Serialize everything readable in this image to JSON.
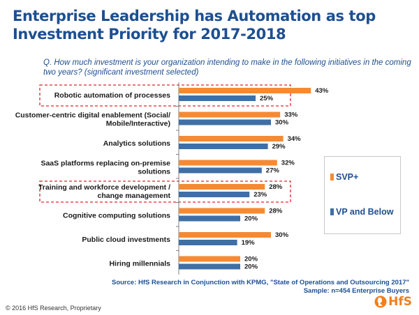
{
  "title": "Enterprise Leadership has Automation as top Investment Priority for 2017-2018",
  "question": "Q. How much investment is your organization intending to make in the following initiatives in the coming two years? (significant investment selected)",
  "legend": {
    "series_a": "SVP+",
    "series_b": "VP and Below"
  },
  "source": {
    "line1": "Source: HfS Research in Conjunction with KPMG, \"State of Operations and Outsourcing 2017\"",
    "line2": "Sample: n=454 Enterprise Buyers"
  },
  "footer": {
    "copyright": "© 2016 HfS Research, Proprietary",
    "logo_text": "HfS"
  },
  "colors": {
    "series_a": "#f58a33",
    "series_b": "#3f6fa5",
    "highlight": "#e0242a",
    "text": "#1a1a1a",
    "axis": "#7f7f7f"
  },
  "chart_data": {
    "type": "bar",
    "orientation": "horizontal",
    "categories": [
      [
        "Robotic automation of processes"
      ],
      [
        "Customer-centric digital enablement (Social/",
        "Mobile/Interactive)"
      ],
      [
        "Analytics solutions"
      ],
      [
        "SaaS platforms replacing on-premise",
        "solutions"
      ],
      [
        "Training and workforce development /",
        "change management"
      ],
      [
        "Cognitive computing solutions"
      ],
      [
        "Public cloud investments"
      ],
      [
        "Hiring millennials"
      ]
    ],
    "series": [
      {
        "name": "SVP+",
        "values": [
          43,
          33,
          34,
          32,
          28,
          28,
          30,
          20
        ]
      },
      {
        "name": "VP and Below",
        "values": [
          25,
          30,
          29,
          27,
          23,
          20,
          19,
          20
        ]
      }
    ],
    "value_suffix": "%",
    "xlim": [
      0,
      50
    ],
    "highlighted_categories": [
      0,
      4
    ],
    "grid": false,
    "legend_position": "right"
  }
}
